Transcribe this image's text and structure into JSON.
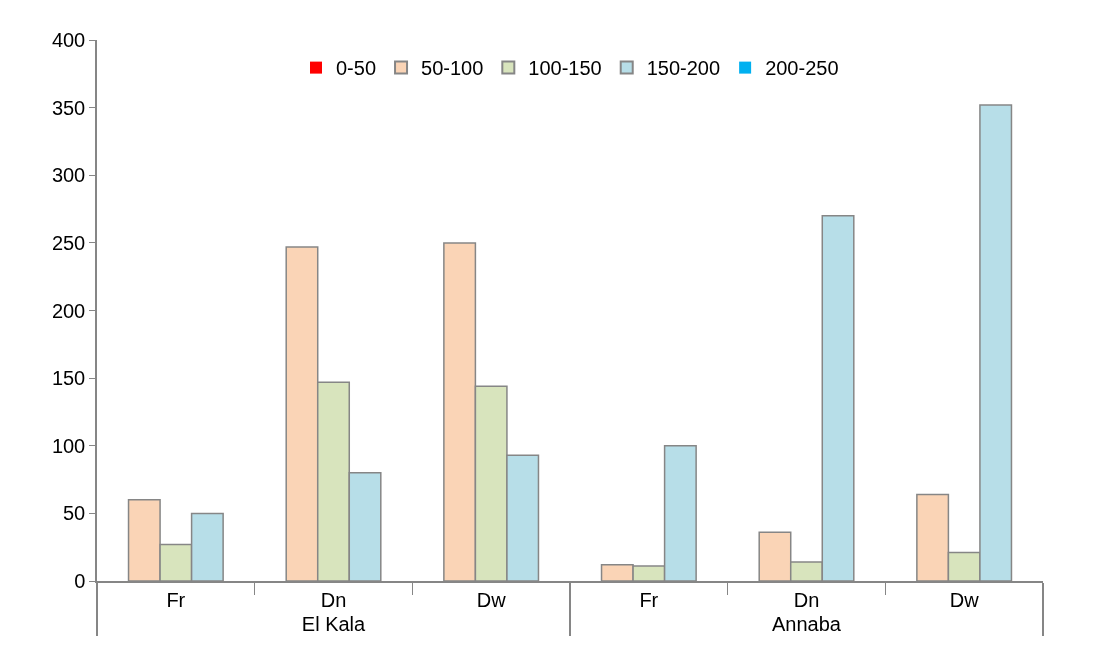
{
  "chart_data": {
    "type": "bar",
    "categories": [
      "Fr",
      "Dn",
      "Dw",
      "Fr",
      "Dn",
      "Dw"
    ],
    "annotations": [
      "El Kala",
      "Annaba"
    ],
    "series": [
      {
        "name": "0-50",
        "color": "#ff0000",
        "values": [
          null,
          null,
          null,
          null,
          null,
          null
        ]
      },
      {
        "name": "50-100",
        "color": "#fad4b6",
        "values": [
          60,
          247,
          250,
          12,
          36,
          64
        ]
      },
      {
        "name": "100-150",
        "color": "#d8e4bd",
        "values": [
          27,
          147,
          144,
          11,
          14,
          21
        ]
      },
      {
        "name": "150-200",
        "color": "#b7dee8",
        "values": [
          50,
          80,
          93,
          100,
          270,
          352
        ]
      },
      {
        "name": "200-250",
        "color": "#00b0f0",
        "values": [
          null,
          null,
          null,
          null,
          null,
          null
        ]
      }
    ],
    "ylim": [
      0,
      400
    ],
    "yticks": [
      0,
      50,
      100,
      150,
      200,
      250,
      300,
      350,
      400
    ],
    "grid": false,
    "legend": "top"
  }
}
